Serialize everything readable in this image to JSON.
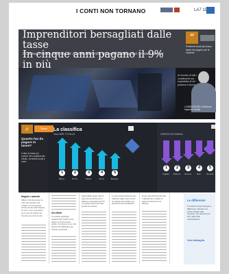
{
  "page": {
    "section_title": "I CONTI NON TORNANO",
    "page_id": "LA7 19"
  },
  "hero": {
    "headline_line1": "Imprenditori bersagliati dalle tasse",
    "headline_line2": "In cinque anni pagano il 9% in più",
    "subheadline": "I Comuni sotto la lente di Azzeleandorfn. Invece colletto nei grandi centri",
    "quote_text": "Preferirei fondi più bassi tasse da pagare per le imprese.",
    "photo_caption": "L'ASSESSORE al Bilancio risponde ai dati"
  },
  "sidebar": {
    "text": "Al servizio di tutti i contribuenti ma soprattutto di chi produce e lavora."
  },
  "infographic": {
    "question": "Quanto hai da pagare in tasse?",
    "note": "Il dato si basa sui numeri del contribuente medio, tra tributi locali e oneri.",
    "left_title": "La classifica",
    "left_subtitle": "VALORE TOTALE",
    "right_subtitle": "CRESCITA MEDIA",
    "tag": "Tasse",
    "left_labels": [
      "Milano",
      "Roma",
      "Napoli",
      "Torino",
      "Bologna"
    ],
    "right_labels": [
      "Cagliari",
      "Palermo",
      "Genova",
      "Bari",
      "Venezia"
    ]
  },
  "article": {
    "col1_head": "Negozi e aziende",
    "col1_text": "Milano e Roma restano in vetta alla classifica dei comuni con la pressione fiscale più alta sulle imprese. Il carico cresce soprattutto per le piccole attività che lavorano nei centri storici.",
    "col2_head": "Gli effetti",
    "col2_text": "Le aziende segnalano aumenti nelle tariffe locali, mentre i servizi restano stabili. Il confronto tra le città mostra forti differenze sul territorio nazionale.",
    "col3_text": "Negli ultimi cinque anni la spesa fiscale media per le imprese è aumentata del 9% con punte più elevate nelle grandi aree urbane.",
    "col4_text": "Le associazioni chiedono una riduzione degli oneri locali e un sistema più semplice per pianificare gli investimenti.",
    "col5_text": "Il peso dei tributi incide sulla competitività e rallenta la ripresa di molte piccole imprese."
  },
  "aside": {
    "heading1": "Le differenze",
    "text": "Tra Nord e Sud emergono differenze marcate nel carico fiscale sulle imprese, con aumenti più forti nelle città metropolitane.",
    "heading2": "Una battaglia"
  }
}
